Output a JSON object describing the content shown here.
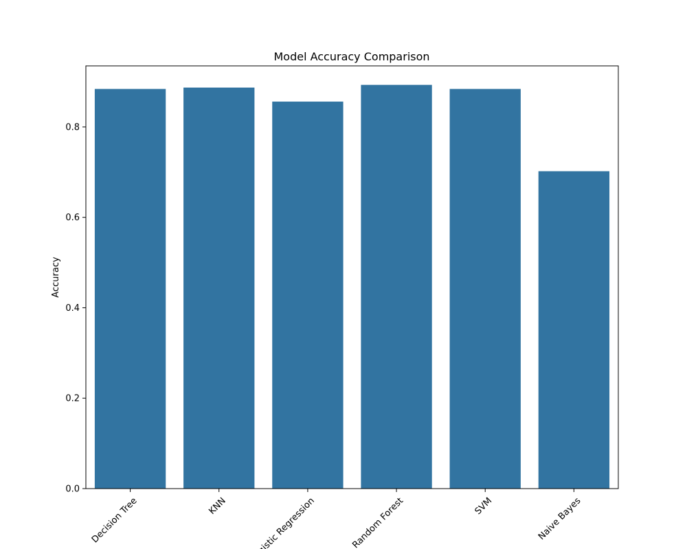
{
  "chart_data": {
    "type": "bar",
    "title": "Model Accuracy Comparison",
    "xlabel": "",
    "ylabel": "Accuracy",
    "categories": [
      "Decision Tree",
      "KNN",
      "Logistic Regression",
      "Random Forest",
      "SVM",
      "Naive Bayes"
    ],
    "values": [
      0.884,
      0.887,
      0.856,
      0.893,
      0.884,
      0.702
    ],
    "ylim": [
      0,
      0.935
    ],
    "yticks": [
      0.0,
      0.2,
      0.4,
      0.6,
      0.8
    ],
    "ytick_labels": [
      "0.0",
      "0.2",
      "0.4",
      "0.6",
      "0.8"
    ],
    "bar_color": "#3274a1",
    "grid": false,
    "xtick_rotation_deg": 45
  }
}
